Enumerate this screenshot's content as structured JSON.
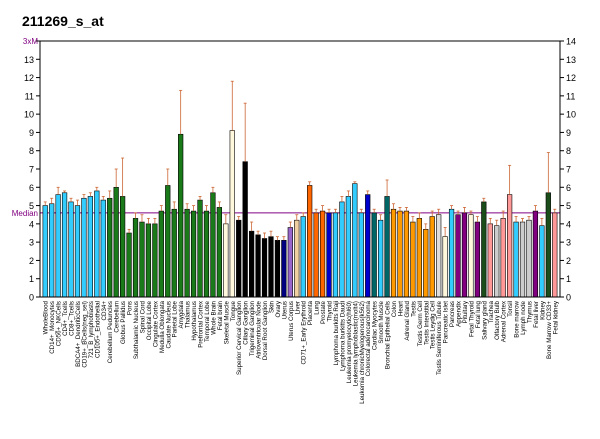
{
  "chart_data": {
    "type": "bar",
    "title": "211269_s_at",
    "ylim": [
      0,
      14
    ],
    "yticks": [
      0,
      1,
      2,
      3,
      4,
      5,
      6,
      7,
      8,
      9,
      10,
      11,
      12,
      13,
      14
    ],
    "reference_lines": [
      {
        "label": "3xM",
        "value": 14,
        "color": "#800080"
      },
      {
        "label": "Median",
        "value": 4.6,
        "color": "#800080"
      }
    ],
    "axis_colors": {
      "left_labels": "#800080",
      "right_labels": "#000000"
    },
    "categories": [
      "WholeBlood",
      "CD14+_Monocytes",
      "CD56+_NKCells",
      "CD4+_Tcells",
      "CD8+_Tcells",
      "BDCA4+_DendriticCells",
      "CD19+_BCells(neg_sel)",
      "721_B_lymphoblasts",
      "CD105+_Endothelial",
      "CD34+",
      "Cerebellum Peduncles",
      "Cerebellum",
      "Globus Pallidus",
      "Pons",
      "Subthalamic Nucleus",
      "Spinal Cord",
      "Occipital Lobe",
      "Cingulate Cortex",
      "Medulla Oblongata",
      "Caudate Nucleus",
      "Parietal Lobe",
      "Amygdala",
      "Thalamus",
      "Hypothalamus",
      "Prefrontal Cortex",
      "Temporal Lobe",
      "Whole Brain",
      "Fetal brain",
      "Skeletal Muscle",
      "Tongue",
      "Superior Cervical Ganglion",
      "Ciliary Ganglion",
      "Trigeminal Ganglion",
      "Atrioventricular Node",
      "Dorsal Root Ganglion",
      "Skin",
      "Ovary",
      "Uterus",
      "Uterus Corpus",
      "Liver",
      "CD71+_Early Erythroid",
      "Placenta",
      "Lung",
      "Prostate",
      "Thyroid",
      "Lymphoma burkitts Raji",
      "Lymphoma burkitts Daudi",
      "Leukemia promyelocytic(hl60)",
      "Leukemia lymphoblastic(molt4)",
      "Leukemia chronicMyelogenous(k562)",
      "Colorectal adenocarcinoma",
      "Cardiac Myocytes",
      "Smooth Muscle",
      "Bronchial Epithelial Cells",
      "Colon",
      "Heart",
      "Adrenal Gland",
      "Testis",
      "Testis Germ Cell",
      "Testis Interstitial",
      "Testis Leydig Cell",
      "Testis Seminiferous Tubule",
      "Pancreatic Islet",
      "Pancreas",
      "Appendix",
      "Pituitary",
      "Fetal Thyroid",
      "Fetal lung",
      "Salivary gland",
      "Trachea",
      "Olfactory Bulb",
      "Adrenal Cortex",
      "Tonsil",
      "Bone marrow",
      "Lymph node",
      "Thymus",
      "Fetal liver",
      "Kidney",
      "Bone Marrow CD33+",
      "Fetal kidney"
    ],
    "x_tick_labels": [
      "WholeBlood",
      "CD14+_Monocytes",
      "CD56+_NKCells",
      "CD4+_Tcells",
      "CD8+_Tcells",
      "BDCA4+_DendriticCells",
      "CD19+_BCells(neg_sel)",
      "721_B_lymphoblasts",
      "CD105+_Endothelial",
      "CD34+",
      "Cerebellum Peduncles",
      "Cerebellum",
      "Globus Pallidus",
      "Pons",
      "Subthalamic Nucleus",
      "Spinal Cord",
      "Occipital Lobe",
      "Cingulate Cortex",
      "Medulla Oblongata",
      "Caudate Nucleus",
      "Parietal Lobe",
      "Amygdala",
      "Thalamus",
      "Hypothalamus",
      "Prefrontal Cortex",
      "Temporal Lobe",
      "Whole Brain",
      "Fetal brain",
      "Skeletal Muscle",
      "Tongue",
      "Superior Cervical Ganglion",
      "Ciliary Ganglion",
      "Trigeminal Ganglion",
      "Atrioventricular Node",
      "Dorsal Root Ganglion",
      "Skin",
      "Ovary",
      "Uterus",
      "Uterus Corpus",
      "Liver",
      "CD71+_Early Erythroid",
      "Placenta",
      "Lung",
      "Prostate",
      "Thyroid",
      "Lymphoma burkitts Raji",
      "Lymphoma burkitts Daudi",
      "Leukemia promyelocytic(hl60)",
      "Leukemia lymphoblastic(molt4)",
      "Leukemia chronicMyelogenous(k562)",
      "Colorectal adenocarcinoma",
      "Cardiac Myocytes",
      "Smooth Muscle",
      "Bronchial Epithelial Cells",
      "Colon",
      "Heart",
      "Adrenal Gland",
      "Testis",
      "Testis Germ Cell",
      "Testis Interstitial",
      "Testis Leydig Cell",
      "Testis Seminiferous Tubule",
      "Pancreatic Islet",
      "Pancreas",
      "Appendix",
      "Pituitary",
      "Fetal Thyroid",
      "Fetal lung",
      "Salivary gland",
      "Trachea",
      "Olfactory Bulb",
      "Adrenal Cortex",
      "Tonsil",
      "Bone marrow",
      "Lymph node",
      "Thymus",
      "Fetal liver",
      "Kidney",
      "Bone Marrow CD33+",
      "Fetal kidney"
    ],
    "values": [
      5.0,
      5.1,
      5.6,
      5.7,
      5.2,
      5.0,
      5.4,
      5.5,
      5.8,
      5.3,
      5.4,
      6.0,
      5.5,
      3.5,
      4.3,
      4.1,
      4.0,
      4.0,
      4.7,
      6.1,
      4.8,
      8.9,
      4.8,
      4.7,
      5.3,
      4.7,
      5.7,
      4.9,
      4.0,
      9.1,
      4.2,
      7.4,
      3.6,
      3.4,
      3.2,
      3.3,
      3.1,
      3.1,
      3.8,
      4.2,
      4.4,
      6.1,
      4.6,
      4.7,
      4.6,
      4.6,
      5.2,
      5.5,
      6.2,
      4.6,
      5.6,
      4.6,
      4.2,
      5.5,
      4.8,
      4.7,
      4.7,
      4.1,
      4.3,
      3.7,
      4.4,
      4.5,
      3.3,
      4.8,
      4.5,
      4.6,
      4.5,
      4.1,
      5.2,
      4.0,
      3.9,
      4.3,
      5.6,
      4.1,
      4.1,
      4.2,
      4.7,
      3.9,
      5.7,
      4.6
    ],
    "error_high": [
      5.2,
      5.4,
      6.0,
      5.8,
      5.4,
      5.3,
      5.6,
      5.7,
      6.0,
      5.5,
      5.8,
      7.0,
      7.6,
      3.7,
      4.6,
      4.5,
      4.3,
      4.3,
      5.0,
      7.0,
      5.2,
      11.3,
      5.1,
      5.0,
      5.5,
      5.0,
      6.0,
      5.2,
      4.5,
      11.8,
      4.4,
      10.6,
      4.1,
      3.6,
      3.5,
      3.6,
      3.3,
      3.3,
      4.1,
      4.5,
      4.6,
      6.3,
      4.8,
      5.0,
      4.8,
      4.8,
      5.5,
      5.8,
      6.3,
      4.8,
      5.8,
      4.8,
      4.5,
      6.4,
      5.1,
      4.9,
      4.9,
      4.4,
      4.6,
      4.0,
      4.7,
      4.8,
      3.8,
      5.0,
      4.7,
      4.9,
      4.7,
      4.4,
      5.4,
      4.3,
      4.2,
      4.7,
      7.2,
      4.4,
      4.3,
      4.4,
      5.0,
      4.3,
      7.9,
      4.8
    ],
    "colors": [
      "#33ccff",
      "#33ccff",
      "#33ccff",
      "#33ccff",
      "#33ccff",
      "#33ccff",
      "#33ccff",
      "#33ccff",
      "#33ccff",
      "#33ccff",
      "#1a7a1a",
      "#1a7a1a",
      "#1a7a1a",
      "#1a7a1a",
      "#1a7a1a",
      "#1a7a1a",
      "#1a7a1a",
      "#1a7a1a",
      "#1a7a1a",
      "#1a7a1a",
      "#1a7a1a",
      "#1a7a1a",
      "#1a7a1a",
      "#1a7a1a",
      "#1a7a1a",
      "#1a7a1a",
      "#1a7a1a",
      "#1a7a1a",
      "#fff8dc",
      "#fff8dc",
      "#000000",
      "#000000",
      "#000000",
      "#000000",
      "#000000",
      "#000000",
      "#000000",
      "#000080",
      "#9966cc",
      "#f0d0a0",
      "#33ccff",
      "#ff6600",
      "#ff6600",
      "#ff6600",
      "#0000cc",
      "#33ccff",
      "#33ccff",
      "#33ccff",
      "#33ccff",
      "#33ccff",
      "#0000cc",
      "#006666",
      "#33ccff",
      "#006666",
      "#ff9900",
      "#ff9900",
      "#ff9900",
      "#ff9900",
      "#ff9900",
      "#ff9900",
      "#ff9900",
      "#dddddd",
      "#fff8dc",
      "#33ccff",
      "#800080",
      "#800080",
      "#fff8dc",
      "#800080",
      "#1a4d1a",
      "#ff9999",
      "#cccccc",
      "#ff9999",
      "#ff9999",
      "#33ccff",
      "#cccccc",
      "#cccccc",
      "#800080",
      "#33ccff",
      "#1a4d1a",
      "#ff9999"
    ]
  }
}
